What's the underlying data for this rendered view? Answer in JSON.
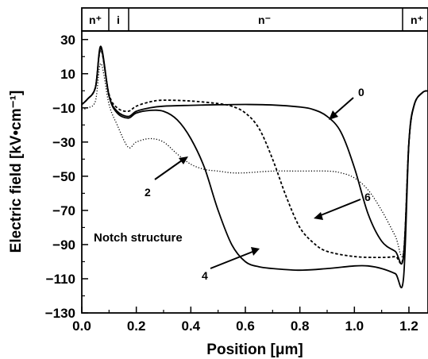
{
  "chart_data": {
    "type": "line",
    "xlabel": "Position  [μm]",
    "ylabel": "Electric field  [kV•cm⁻¹]",
    "xlim": [
      0.0,
      1.27
    ],
    "ylim": [
      -130,
      35
    ],
    "xticks": [
      "0.0",
      "0.2",
      "0.4",
      "0.6",
      "0.8",
      "1.0",
      "1.2"
    ],
    "xtick_values": [
      0.0,
      0.2,
      0.4,
      0.6,
      0.8,
      1.0,
      1.2
    ],
    "yticks": [
      "30",
      "10",
      "−10",
      "−30",
      "−50",
      "−70",
      "−90",
      "−110",
      "−130"
    ],
    "ytick_values": [
      30,
      10,
      -10,
      -30,
      -50,
      -70,
      -90,
      -110,
      -130
    ],
    "regions": [
      {
        "label": "n⁺",
        "from": 0.0,
        "to": 0.1
      },
      {
        "label": "i",
        "from": 0.1,
        "to": 0.17
      },
      {
        "label": "n⁻",
        "from": 0.17,
        "to": 1.2
      },
      {
        "label": "n⁺",
        "from": 1.2,
        "to": 1.27
      }
    ],
    "annotation": "Notch structure",
    "series": [
      {
        "name": "0",
        "style": "solid",
        "x": [
          0.0,
          0.02,
          0.05,
          0.07,
          0.1,
          0.13,
          0.17,
          0.2,
          0.25,
          0.3,
          0.4,
          0.5,
          0.6,
          0.7,
          0.8,
          0.85,
          0.9,
          0.95,
          1.0,
          1.05,
          1.1,
          1.15,
          1.18,
          1.2,
          1.22,
          1.25,
          1.27
        ],
        "y": [
          -8,
          -5,
          2,
          25,
          -3,
          -12,
          -15,
          -12,
          -10,
          -9,
          -8.5,
          -8.2,
          -8,
          -8.3,
          -9.5,
          -11,
          -15,
          -24,
          -45,
          -72,
          -88,
          -94,
          -97,
          -30,
          -8,
          -1,
          0
        ]
      },
      {
        "name": "2",
        "style": "dotted",
        "x": [
          0.0,
          0.02,
          0.05,
          0.07,
          0.1,
          0.13,
          0.17,
          0.2,
          0.25,
          0.3,
          0.35,
          0.4,
          0.45,
          0.5,
          0.55,
          0.6,
          0.7,
          0.8,
          0.9,
          0.95,
          1.0,
          1.05,
          1.1,
          1.15,
          1.18,
          1.2,
          1.22,
          1.25,
          1.27
        ],
        "y": [
          -11,
          -10,
          -6,
          16,
          -8,
          -20,
          -33,
          -30,
          -28,
          -30,
          -37,
          -43,
          -46,
          -47,
          -48,
          -48,
          -47,
          -47,
          -47,
          -48,
          -51,
          -58,
          -70,
          -85,
          -94,
          -30,
          -8,
          -1,
          0
        ]
      },
      {
        "name": "4",
        "style": "solid",
        "x": [
          0.0,
          0.02,
          0.05,
          0.07,
          0.1,
          0.13,
          0.17,
          0.2,
          0.25,
          0.3,
          0.35,
          0.4,
          0.45,
          0.5,
          0.55,
          0.6,
          0.65,
          0.7,
          0.8,
          0.9,
          1.0,
          1.05,
          1.1,
          1.15,
          1.18,
          1.2,
          1.22,
          1.25,
          1.27
        ],
        "y": [
          -8,
          -5,
          2,
          26,
          -3,
          -13,
          -16,
          -13,
          -11.5,
          -12,
          -17,
          -28,
          -45,
          -70,
          -90,
          -100,
          -103,
          -104,
          -105,
          -104,
          -102.5,
          -102.5,
          -104,
          -107,
          -110,
          -30,
          -8,
          -1,
          0
        ]
      },
      {
        "name": "6",
        "style": "dashed",
        "x": [
          0.0,
          0.02,
          0.05,
          0.07,
          0.1,
          0.13,
          0.17,
          0.2,
          0.25,
          0.3,
          0.4,
          0.5,
          0.55,
          0.6,
          0.65,
          0.7,
          0.75,
          0.8,
          0.85,
          0.9,
          1.0,
          1.1,
          1.15,
          1.18,
          1.2,
          1.22,
          1.25,
          1.27
        ],
        "y": [
          -8,
          -5,
          2,
          24,
          -2,
          -10,
          -12,
          -9,
          -6.5,
          -5.5,
          -6,
          -7.5,
          -9,
          -13,
          -22,
          -40,
          -62,
          -80,
          -89,
          -94,
          -97,
          -97.5,
          -97,
          -96,
          -30,
          -8,
          -1,
          0
        ]
      }
    ]
  }
}
